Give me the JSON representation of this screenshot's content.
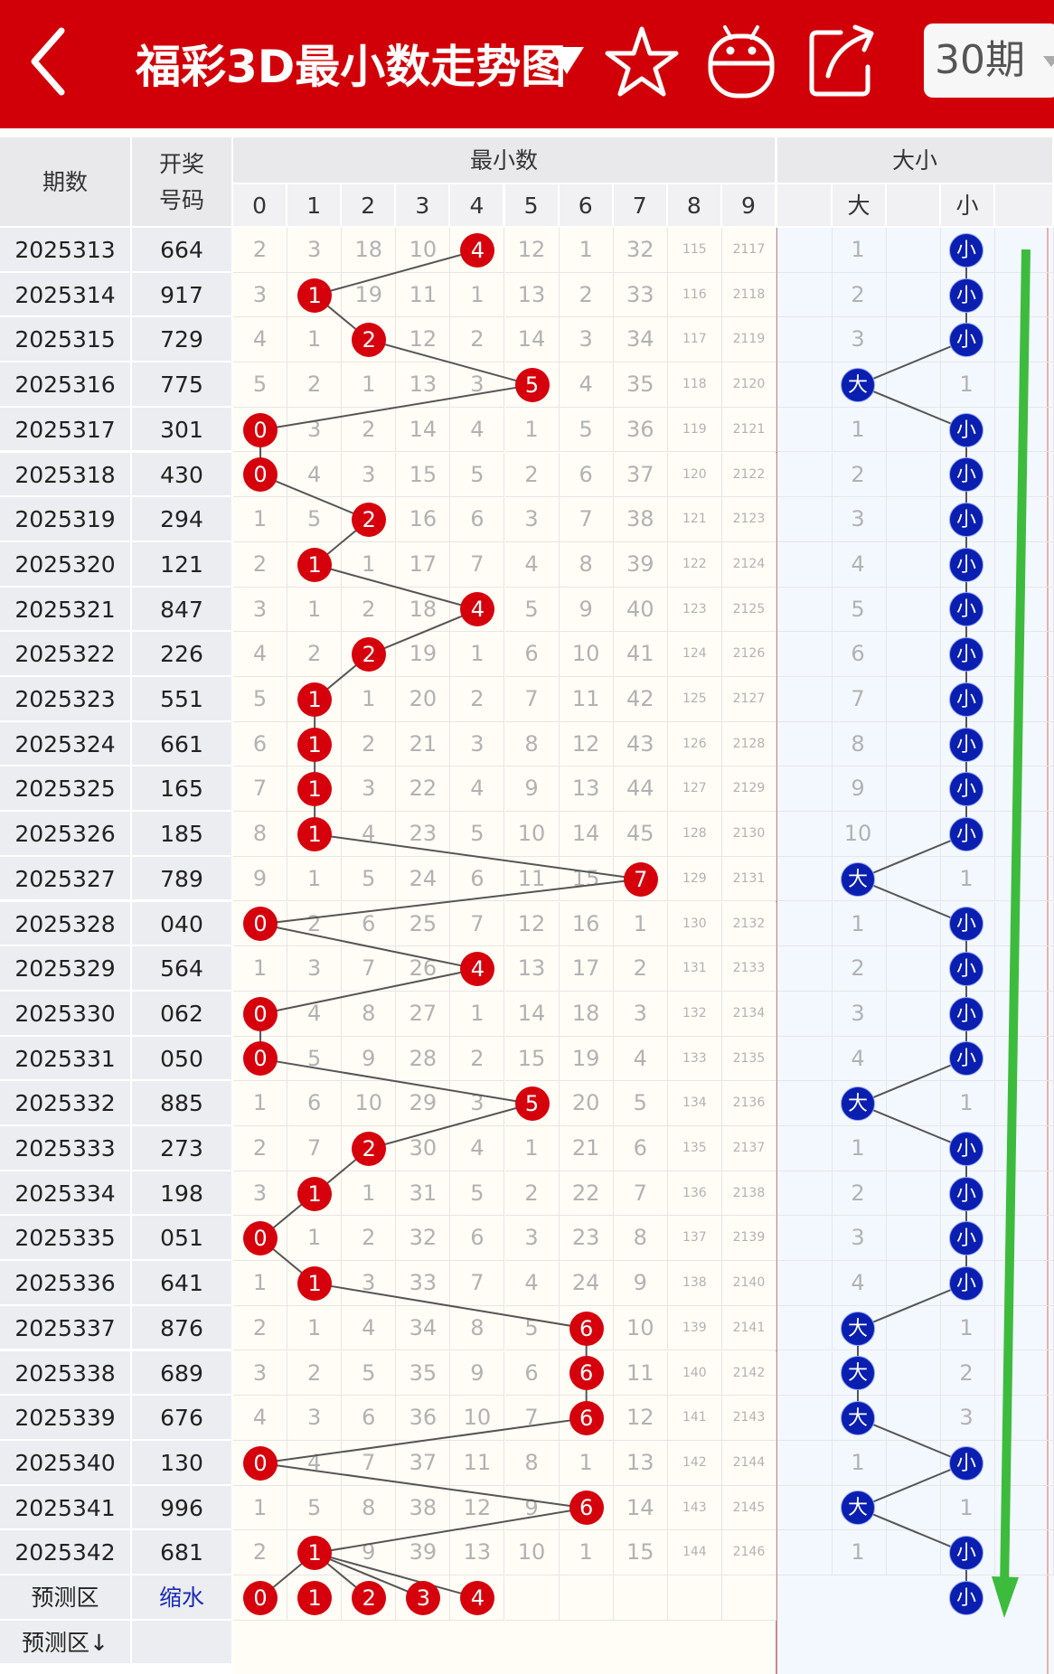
{
  "header": {
    "title": "福彩3D最小数走势图",
    "period_label": "30期",
    "icons": [
      "back-arrow-icon",
      "dropdown-caret-icon",
      "star-icon",
      "android-icon",
      "share-icon",
      "chevron-down-icon"
    ],
    "bg_color": "#d10008"
  },
  "table": {
    "col_issue": "期数",
    "col_draw_line1": "开奖",
    "col_draw_line2": "号码",
    "group_min": "最小数",
    "group_size": "大小",
    "digits": [
      "0",
      "1",
      "2",
      "3",
      "4",
      "5",
      "6",
      "7",
      "8",
      "9"
    ],
    "size_labels": [
      "大",
      "小"
    ],
    "big_label": "大",
    "small_label": "小",
    "forecast_label": "预测区",
    "forecast_action": "缩水",
    "forecast_label2": "预测区↓",
    "forecast_balls": [
      "0",
      "1",
      "2",
      "3",
      "4"
    ],
    "forecast_size": "小",
    "rows": [
      {
        "issue": "2025313",
        "draw": "664",
        "min": 4,
        "miss": [
          2,
          3,
          18,
          10,
          0,
          12,
          1,
          32,
          115,
          2117
        ],
        "size": "小",
        "size_miss": 1
      },
      {
        "issue": "2025314",
        "draw": "917",
        "min": 1,
        "miss": [
          3,
          0,
          19,
          11,
          1,
          13,
          2,
          33,
          116,
          2118
        ],
        "size": "小",
        "size_miss": 2
      },
      {
        "issue": "2025315",
        "draw": "729",
        "min": 2,
        "miss": [
          4,
          1,
          0,
          12,
          2,
          14,
          3,
          34,
          117,
          2119
        ],
        "size": "小",
        "size_miss": 3
      },
      {
        "issue": "2025316",
        "draw": "775",
        "min": 5,
        "miss": [
          5,
          2,
          1,
          13,
          3,
          0,
          4,
          35,
          118,
          2120
        ],
        "size": "大",
        "size_miss": 1
      },
      {
        "issue": "2025317",
        "draw": "301",
        "min": 0,
        "miss": [
          0,
          3,
          2,
          14,
          4,
          1,
          5,
          36,
          119,
          2121
        ],
        "size": "小",
        "size_miss": 1
      },
      {
        "issue": "2025318",
        "draw": "430",
        "min": 0,
        "miss": [
          0,
          4,
          3,
          15,
          5,
          2,
          6,
          37,
          120,
          2122
        ],
        "size": "小",
        "size_miss": 2
      },
      {
        "issue": "2025319",
        "draw": "294",
        "min": 2,
        "miss": [
          1,
          5,
          0,
          16,
          6,
          3,
          7,
          38,
          121,
          2123
        ],
        "size": "小",
        "size_miss": 3
      },
      {
        "issue": "2025320",
        "draw": "121",
        "min": 1,
        "miss": [
          2,
          0,
          1,
          17,
          7,
          4,
          8,
          39,
          122,
          2124
        ],
        "size": "小",
        "size_miss": 4
      },
      {
        "issue": "2025321",
        "draw": "847",
        "min": 4,
        "miss": [
          3,
          1,
          2,
          18,
          0,
          5,
          9,
          40,
          123,
          2125
        ],
        "size": "小",
        "size_miss": 5
      },
      {
        "issue": "2025322",
        "draw": "226",
        "min": 2,
        "miss": [
          4,
          2,
          0,
          19,
          1,
          6,
          10,
          41,
          124,
          2126
        ],
        "size": "小",
        "size_miss": 6
      },
      {
        "issue": "2025323",
        "draw": "551",
        "min": 1,
        "miss": [
          5,
          0,
          1,
          20,
          2,
          7,
          11,
          42,
          125,
          2127
        ],
        "size": "小",
        "size_miss": 7
      },
      {
        "issue": "2025324",
        "draw": "661",
        "min": 1,
        "miss": [
          6,
          0,
          2,
          21,
          3,
          8,
          12,
          43,
          126,
          2128
        ],
        "size": "小",
        "size_miss": 8
      },
      {
        "issue": "2025325",
        "draw": "165",
        "min": 1,
        "miss": [
          7,
          0,
          3,
          22,
          4,
          9,
          13,
          44,
          127,
          2129
        ],
        "size": "小",
        "size_miss": 9
      },
      {
        "issue": "2025326",
        "draw": "185",
        "min": 1,
        "miss": [
          8,
          0,
          4,
          23,
          5,
          10,
          14,
          45,
          128,
          2130
        ],
        "size": "小",
        "size_miss": 10
      },
      {
        "issue": "2025327",
        "draw": "789",
        "min": 7,
        "miss": [
          9,
          1,
          5,
          24,
          6,
          11,
          15,
          0,
          129,
          2131
        ],
        "size": "大",
        "size_miss": 1
      },
      {
        "issue": "2025328",
        "draw": "040",
        "min": 0,
        "miss": [
          0,
          2,
          6,
          25,
          7,
          12,
          16,
          1,
          130,
          2132
        ],
        "size": "小",
        "size_miss": 1
      },
      {
        "issue": "2025329",
        "draw": "564",
        "min": 4,
        "miss": [
          1,
          3,
          7,
          26,
          0,
          13,
          17,
          2,
          131,
          2133
        ],
        "size": "小",
        "size_miss": 2
      },
      {
        "issue": "2025330",
        "draw": "062",
        "min": 0,
        "miss": [
          0,
          4,
          8,
          27,
          1,
          14,
          18,
          3,
          132,
          2134
        ],
        "size": "小",
        "size_miss": 3
      },
      {
        "issue": "2025331",
        "draw": "050",
        "min": 0,
        "miss": [
          0,
          5,
          9,
          28,
          2,
          15,
          19,
          4,
          133,
          2135
        ],
        "size": "小",
        "size_miss": 4
      },
      {
        "issue": "2025332",
        "draw": "885",
        "min": 5,
        "miss": [
          1,
          6,
          10,
          29,
          3,
          0,
          20,
          5,
          134,
          2136
        ],
        "size": "大",
        "size_miss": 1
      },
      {
        "issue": "2025333",
        "draw": "273",
        "min": 2,
        "miss": [
          2,
          7,
          0,
          30,
          4,
          1,
          21,
          6,
          135,
          2137
        ],
        "size": "小",
        "size_miss": 1
      },
      {
        "issue": "2025334",
        "draw": "198",
        "min": 1,
        "miss": [
          3,
          0,
          1,
          31,
          5,
          2,
          22,
          7,
          136,
          2138
        ],
        "size": "小",
        "size_miss": 2
      },
      {
        "issue": "2025335",
        "draw": "051",
        "min": 0,
        "miss": [
          0,
          1,
          2,
          32,
          6,
          3,
          23,
          8,
          137,
          2139
        ],
        "size": "小",
        "size_miss": 3
      },
      {
        "issue": "2025336",
        "draw": "641",
        "min": 1,
        "miss": [
          1,
          0,
          3,
          33,
          7,
          4,
          24,
          9,
          138,
          2140
        ],
        "size": "小",
        "size_miss": 4
      },
      {
        "issue": "2025337",
        "draw": "876",
        "min": 6,
        "miss": [
          2,
          1,
          4,
          34,
          8,
          5,
          0,
          10,
          139,
          2141
        ],
        "size": "大",
        "size_miss": 1
      },
      {
        "issue": "2025338",
        "draw": "689",
        "min": 6,
        "miss": [
          3,
          2,
          5,
          35,
          9,
          6,
          0,
          11,
          140,
          2142
        ],
        "size": "大",
        "size_miss": 2
      },
      {
        "issue": "2025339",
        "draw": "676",
        "min": 6,
        "miss": [
          4,
          3,
          6,
          36,
          10,
          7,
          0,
          12,
          141,
          2143
        ],
        "size": "大",
        "size_miss": 3
      },
      {
        "issue": "2025340",
        "draw": "130",
        "min": 0,
        "miss": [
          0,
          4,
          7,
          37,
          11,
          8,
          1,
          13,
          142,
          2144
        ],
        "size": "小",
        "size_miss": 1
      },
      {
        "issue": "2025341",
        "draw": "996",
        "min": 6,
        "miss": [
          1,
          5,
          8,
          38,
          12,
          9,
          0,
          14,
          143,
          2145
        ],
        "size": "大",
        "size_miss": 1
      },
      {
        "issue": "2025342",
        "draw": "681",
        "min": 1,
        "miss": [
          2,
          0,
          9,
          39,
          13,
          10,
          1,
          15,
          144,
          2146
        ],
        "size": "小",
        "size_miss": 1
      }
    ]
  },
  "colors": {
    "red_ball": "#d6000c",
    "blue_ball": "#0a1fb0",
    "trend_arrow": "#3dbb3d"
  }
}
